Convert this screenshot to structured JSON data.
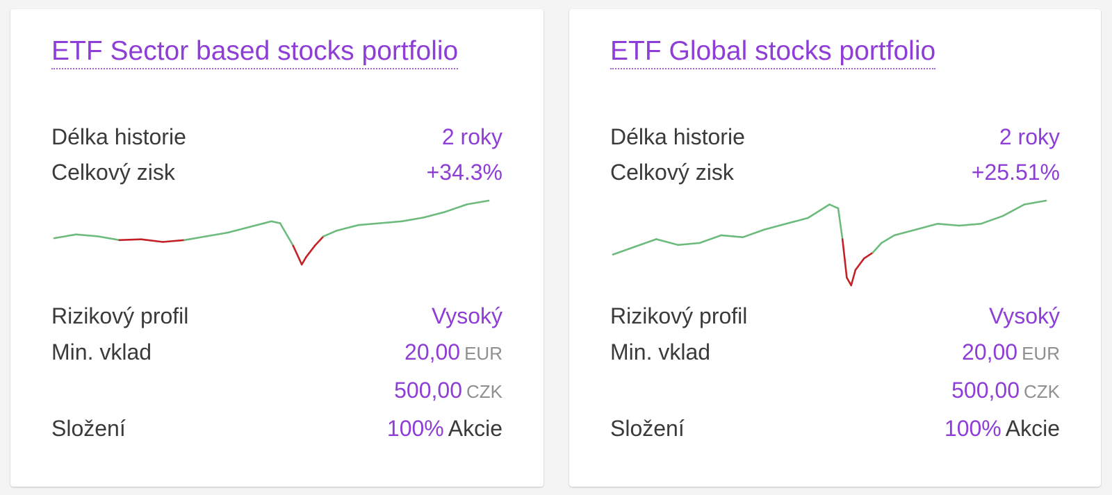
{
  "colors": {
    "accent": "#8e3ed6",
    "gain": "#6cbb7c",
    "loss": "#c42126"
  },
  "cards": [
    {
      "title": "ETF Sector based stocks portfolio",
      "history_label": "Délka historie",
      "history_value": "2 roky",
      "profit_label": "Celkový zisk",
      "profit_value": "+34.3%",
      "risk_label": "Rizikový profil",
      "risk_value": "Vysoký",
      "deposit_label": "Min. vklad",
      "deposit_eur_amount": "20,00",
      "deposit_eur_unit": "EUR",
      "deposit_czk_amount": "500,00",
      "deposit_czk_unit": "CZK",
      "composition_label": "Složení",
      "composition_percent": "100%",
      "composition_kind": "Akcie"
    },
    {
      "title": "ETF Global stocks portfolio",
      "history_label": "Délka historie",
      "history_value": "2 roky",
      "profit_label": "Celkový zisk",
      "profit_value": "+25.51%",
      "risk_label": "Rizikový profil",
      "risk_value": "Vysoký",
      "deposit_label": "Min. vklad",
      "deposit_eur_amount": "20,00",
      "deposit_eur_unit": "EUR",
      "deposit_czk_amount": "500,00",
      "deposit_czk_unit": "CZK",
      "composition_label": "Složení",
      "composition_percent": "100%",
      "composition_kind": "Akcie"
    }
  ],
  "chart_data": [
    {
      "type": "line",
      "baseline": 0,
      "x": [
        0,
        0.05,
        0.1,
        0.15,
        0.2,
        0.25,
        0.3,
        0.35,
        0.4,
        0.45,
        0.5,
        0.52,
        0.55,
        0.57,
        0.58,
        0.6,
        0.62,
        0.65,
        0.7,
        0.75,
        0.8,
        0.85,
        0.9,
        0.95,
        1.0
      ],
      "values": [
        0,
        1,
        0.5,
        -0.5,
        -0.3,
        -1,
        -0.5,
        0.5,
        1.5,
        3,
        4.5,
        4,
        -2,
        -7,
        -5,
        -2,
        0.5,
        2,
        3.5,
        4,
        4.5,
        5.5,
        7,
        9,
        10
      ]
    },
    {
      "type": "line",
      "baseline": 0,
      "x": [
        0,
        0.05,
        0.1,
        0.15,
        0.2,
        0.25,
        0.3,
        0.35,
        0.4,
        0.45,
        0.5,
        0.52,
        0.53,
        0.54,
        0.55,
        0.56,
        0.58,
        0.6,
        0.62,
        0.65,
        0.7,
        0.75,
        0.8,
        0.85,
        0.9,
        0.95,
        1.0
      ],
      "values": [
        0,
        2,
        4,
        2.5,
        3,
        5,
        4.5,
        6.5,
        8,
        9.5,
        13,
        12,
        4,
        -6,
        -8,
        -4,
        -1,
        0.5,
        3,
        5,
        6.5,
        8,
        7.5,
        8,
        10,
        13,
        14
      ]
    }
  ]
}
